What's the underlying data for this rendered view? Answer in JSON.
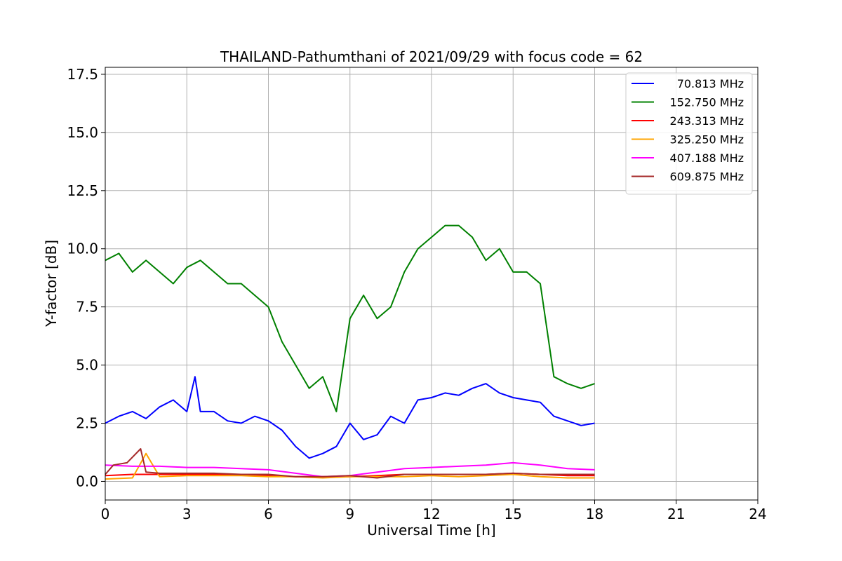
{
  "chart_data": {
    "type": "line",
    "title": "THAILAND-Pathumthani of 2021/09/29 with focus code = 62",
    "xlabel": "Universal Time [h]",
    "ylabel": "Y-factor [dB]",
    "xlim": [
      0,
      24
    ],
    "ylim": [
      -0.8,
      17.8
    ],
    "xticks": [
      0,
      3,
      6,
      9,
      12,
      15,
      18,
      21,
      24
    ],
    "xtick_labels": [
      "0",
      "3",
      "6",
      "9",
      "12",
      "15",
      "18",
      "21",
      "24"
    ],
    "yticks": [
      0,
      2.5,
      5,
      7.5,
      10,
      12.5,
      15,
      17.5
    ],
    "ytick_labels": [
      "0.0",
      "2.5",
      "5.0",
      "7.5",
      "10.0",
      "12.5",
      "15.0",
      "17.5"
    ],
    "grid": true,
    "legend_position": "top-right",
    "series": [
      {
        "name": "70.813 MHz",
        "color": "#0000ff",
        "x": [
          0,
          0.5,
          1,
          1.5,
          2,
          2.5,
          3,
          3.3,
          3.5,
          4,
          4.5,
          5,
          5.5,
          6,
          6.5,
          7,
          7.5,
          8,
          8.5,
          9,
          9.5,
          10,
          10.5,
          11,
          11.5,
          12,
          12.5,
          13,
          13.5,
          14,
          14.5,
          15,
          15.5,
          16,
          16.5,
          17,
          17.5,
          18
        ],
        "y": [
          2.5,
          2.8,
          3,
          2.7,
          3.2,
          3.5,
          3,
          4.5,
          3,
          3,
          2.6,
          2.5,
          2.8,
          2.6,
          2.2,
          1.5,
          1,
          1.2,
          1.5,
          2.5,
          1.8,
          2,
          2.8,
          2.5,
          3.5,
          3.6,
          3.8,
          3.7,
          4,
          4.2,
          3.8,
          3.6,
          3.5,
          3.4,
          2.8,
          2.6,
          2.4,
          2.5
        ]
      },
      {
        "name": "152.750 MHz",
        "color": "#008000",
        "x": [
          0,
          0.5,
          1,
          1.5,
          2,
          2.5,
          3,
          3.5,
          4,
          4.5,
          5,
          5.5,
          6,
          6.5,
          7,
          7.5,
          8,
          8.5,
          9,
          9.5,
          10,
          10.5,
          11,
          11.5,
          12,
          12.5,
          13,
          13.5,
          14,
          14.5,
          15,
          15.5,
          16,
          16.5,
          17,
          17.5,
          18
        ],
        "y": [
          9.5,
          9.8,
          9,
          9.5,
          9,
          8.5,
          9.2,
          9.5,
          9,
          8.5,
          8.5,
          8,
          7.5,
          6,
          5,
          4,
          4.5,
          3,
          7,
          8,
          7,
          7.5,
          9,
          10,
          10.5,
          11,
          11,
          10.5,
          9.5,
          10,
          9,
          9,
          8.5,
          4.5,
          4.2,
          4,
          4.2
        ]
      },
      {
        "name": "243.313 MHz",
        "color": "#ff0000",
        "x": [
          0,
          1,
          2,
          3,
          4,
          5,
          6,
          7,
          8,
          9,
          10,
          11,
          12,
          13,
          14,
          15,
          16,
          17,
          18
        ],
        "y": [
          0.25,
          0.3,
          0.3,
          0.3,
          0.3,
          0.3,
          0.25,
          0.2,
          0.2,
          0.2,
          0.25,
          0.3,
          0.3,
          0.3,
          0.3,
          0.35,
          0.3,
          0.25,
          0.25
        ]
      },
      {
        "name": "325.250 MHz",
        "color": "#ffa500",
        "x": [
          0,
          1,
          1.5,
          2,
          3,
          4,
          5,
          6,
          7,
          8,
          9,
          10,
          11,
          12,
          13,
          14,
          15,
          16,
          17,
          18
        ],
        "y": [
          0.1,
          0.15,
          1.2,
          0.2,
          0.25,
          0.25,
          0.25,
          0.2,
          0.2,
          0.15,
          0.2,
          0.2,
          0.2,
          0.25,
          0.2,
          0.25,
          0.3,
          0.2,
          0.15,
          0.15
        ]
      },
      {
        "name": "407.188 MHz",
        "color": "#ff00ff",
        "x": [
          0,
          1,
          2,
          3,
          4,
          5,
          6,
          7,
          8,
          9,
          10,
          11,
          12,
          13,
          14,
          15,
          16,
          17,
          18
        ],
        "y": [
          0.7,
          0.65,
          0.65,
          0.6,
          0.6,
          0.55,
          0.5,
          0.35,
          0.2,
          0.25,
          0.4,
          0.55,
          0.6,
          0.65,
          0.7,
          0.8,
          0.7,
          0.55,
          0.5
        ]
      },
      {
        "name": "609.875 MHz",
        "color": "#a52a2a",
        "x": [
          0,
          0.3,
          0.8,
          1.3,
          1.5,
          2,
          3,
          4,
          5,
          6,
          7,
          8,
          9,
          10,
          11,
          12,
          13,
          14,
          15,
          16,
          17,
          18
        ],
        "y": [
          0.3,
          0.7,
          0.8,
          1.4,
          0.4,
          0.35,
          0.35,
          0.35,
          0.3,
          0.3,
          0.2,
          0.2,
          0.25,
          0.15,
          0.3,
          0.3,
          0.3,
          0.3,
          0.35,
          0.3,
          0.3,
          0.3
        ]
      }
    ]
  }
}
